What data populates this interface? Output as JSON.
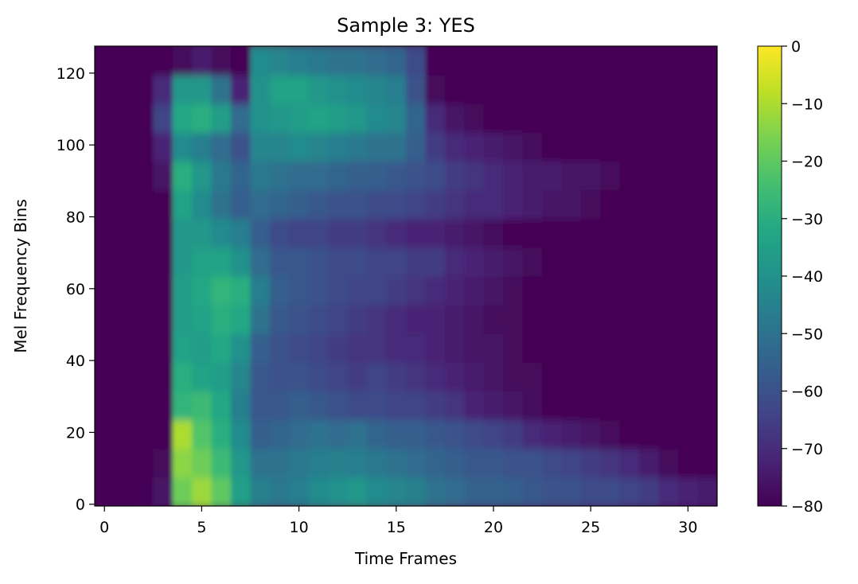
{
  "chart_data": {
    "type": "heatmap",
    "title": "Sample 3: YES",
    "xlabel": "Time Frames",
    "ylabel": "Mel Frequency Bins",
    "xlim": [
      -0.5,
      31.5
    ],
    "ylim": [
      -0.5,
      127.5
    ],
    "x_ticks": [
      0,
      5,
      10,
      15,
      20,
      25,
      30
    ],
    "y_ticks": [
      0,
      20,
      40,
      60,
      80,
      100,
      120
    ],
    "x_tick_labels": [
      "0",
      "5",
      "10",
      "15",
      "20",
      "25",
      "30"
    ],
    "y_tick_labels": [
      "0",
      "20",
      "40",
      "60",
      "80",
      "100",
      "120"
    ],
    "n_time_frames": 32,
    "n_mel_bins": 128,
    "colormap": "viridis",
    "colorbar": {
      "min": -80,
      "max": 0,
      "ticks": [
        0,
        -10,
        -20,
        -30,
        -40,
        -50,
        -60,
        -70,
        -80
      ],
      "tick_labels": [
        "0",
        "−10",
        "−20",
        "−30",
        "−40",
        "−50",
        "−60",
        "−70",
        "−80"
      ]
    },
    "values_db_coarse": {
      "description_rows": "rows = mel bin groups of 8 (0-7 ... 120-127), columns = time frames 0..31",
      "grid": [
        [
          -80,
          -80,
          -79,
          -76,
          -18,
          -12,
          -20,
          -35,
          -45,
          -48,
          -46,
          -42,
          -40,
          -38,
          -42,
          -44,
          -45,
          -50,
          -52,
          -55,
          -55,
          -56,
          -58,
          -60,
          -60,
          -62,
          -62,
          -64,
          -66,
          -70,
          -72,
          -74
        ],
        [
          -80,
          -80,
          -80,
          -78,
          -14,
          -18,
          -26,
          -38,
          -50,
          -50,
          -48,
          -46,
          -45,
          -46,
          -48,
          -50,
          -52,
          -54,
          -56,
          -58,
          -58,
          -60,
          -60,
          -62,
          -64,
          -66,
          -68,
          -70,
          -74,
          -78,
          -80,
          -80
        ],
        [
          -80,
          -80,
          -80,
          -80,
          -10,
          -22,
          -30,
          -42,
          -56,
          -54,
          -52,
          -50,
          -52,
          -50,
          -54,
          -56,
          -56,
          -58,
          -60,
          -62,
          -64,
          -66,
          -70,
          -72,
          -74,
          -76,
          -78,
          -80,
          -80,
          -80,
          -80,
          -80
        ],
        [
          -80,
          -80,
          -80,
          -80,
          -28,
          -26,
          -32,
          -46,
          -58,
          -58,
          -56,
          -58,
          -60,
          -62,
          -62,
          -64,
          -64,
          -66,
          -68,
          -72,
          -74,
          -76,
          -78,
          -80,
          -80,
          -80,
          -80,
          -80,
          -80,
          -80,
          -80,
          -80
        ],
        [
          -80,
          -80,
          -80,
          -80,
          -30,
          -34,
          -36,
          -44,
          -58,
          -60,
          -60,
          -62,
          -64,
          -66,
          -64,
          -66,
          -68,
          -70,
          -72,
          -74,
          -76,
          -78,
          -78,
          -80,
          -80,
          -80,
          -80,
          -80,
          -80,
          -80,
          -80,
          -80
        ],
        [
          -80,
          -80,
          -80,
          -80,
          -34,
          -36,
          -32,
          -40,
          -56,
          -60,
          -62,
          -64,
          -66,
          -68,
          -68,
          -70,
          -70,
          -72,
          -74,
          -76,
          -76,
          -78,
          -80,
          -80,
          -80,
          -80,
          -80,
          -80,
          -80,
          -80,
          -80,
          -80
        ],
        [
          -80,
          -80,
          -80,
          -80,
          -36,
          -34,
          -30,
          -32,
          -50,
          -58,
          -60,
          -62,
          -64,
          -66,
          -68,
          -70,
          -72,
          -72,
          -74,
          -76,
          -78,
          -78,
          -80,
          -80,
          -80,
          -80,
          -80,
          -80,
          -80,
          -80,
          -80,
          -80
        ],
        [
          -80,
          -80,
          -80,
          -80,
          -36,
          -32,
          -28,
          -30,
          -46,
          -56,
          -58,
          -60,
          -62,
          -64,
          -64,
          -66,
          -68,
          -70,
          -72,
          -74,
          -76,
          -78,
          -80,
          -80,
          -80,
          -80,
          -80,
          -80,
          -80,
          -80,
          -80,
          -80
        ],
        [
          -80,
          -80,
          -80,
          -80,
          -38,
          -34,
          -34,
          -40,
          -52,
          -58,
          -58,
          -60,
          -62,
          -62,
          -64,
          -64,
          -66,
          -66,
          -70,
          -72,
          -74,
          -76,
          -78,
          -80,
          -80,
          -80,
          -80,
          -80,
          -80,
          -80,
          -80,
          -80
        ],
        [
          -80,
          -80,
          -80,
          -80,
          -38,
          -38,
          -42,
          -46,
          -56,
          -62,
          -64,
          -64,
          -66,
          -66,
          -68,
          -70,
          -72,
          -72,
          -74,
          -76,
          -78,
          -80,
          -80,
          -80,
          -80,
          -80,
          -80,
          -80,
          -80,
          -80,
          -80,
          -80
        ],
        [
          -80,
          -80,
          -80,
          -80,
          -34,
          -42,
          -50,
          -56,
          -52,
          -54,
          -56,
          -58,
          -60,
          -60,
          -62,
          -62,
          -64,
          -66,
          -68,
          -70,
          -70,
          -72,
          -74,
          -76,
          -76,
          -78,
          -80,
          -80,
          -80,
          -80,
          -80,
          -80
        ],
        [
          -80,
          -80,
          -80,
          -76,
          -30,
          -38,
          -48,
          -54,
          -48,
          -50,
          -52,
          -52,
          -54,
          -56,
          -56,
          -58,
          -60,
          -62,
          -66,
          -68,
          -70,
          -72,
          -74,
          -74,
          -76,
          -76,
          -78,
          -80,
          -80,
          -80,
          -80,
          -80
        ],
        [
          -80,
          -80,
          -80,
          -72,
          -42,
          -46,
          -52,
          -60,
          -44,
          -44,
          -42,
          -44,
          -46,
          -48,
          -50,
          -50,
          -56,
          -66,
          -70,
          -72,
          -74,
          -76,
          -78,
          -80,
          -80,
          -80,
          -80,
          -80,
          -80,
          -80,
          -80,
          -80
        ],
        [
          -80,
          -80,
          -80,
          -64,
          -32,
          -30,
          -36,
          -52,
          -40,
          -38,
          -36,
          -34,
          -36,
          -38,
          -42,
          -44,
          -54,
          -70,
          -76,
          -78,
          -80,
          -80,
          -80,
          -80,
          -80,
          -80,
          -80,
          -80,
          -80,
          -80,
          -80,
          -80
        ],
        [
          -80,
          -80,
          -80,
          -70,
          -38,
          -38,
          -50,
          -72,
          -40,
          -34,
          -34,
          -38,
          -40,
          -42,
          -44,
          -46,
          -60,
          -78,
          -80,
          -80,
          -80,
          -80,
          -80,
          -80,
          -80,
          -80,
          -80,
          -80,
          -80,
          -80,
          -80,
          -80
        ],
        [
          -80,
          -80,
          -80,
          -80,
          -78,
          -74,
          -78,
          -80,
          -42,
          -44,
          -46,
          -48,
          -50,
          -50,
          -52,
          -54,
          -62,
          -80,
          -80,
          -80,
          -80,
          -80,
          -80,
          -80,
          -80,
          -80,
          -80,
          -80,
          -80,
          -80,
          -80,
          -80
        ]
      ]
    },
    "grid": false
  }
}
